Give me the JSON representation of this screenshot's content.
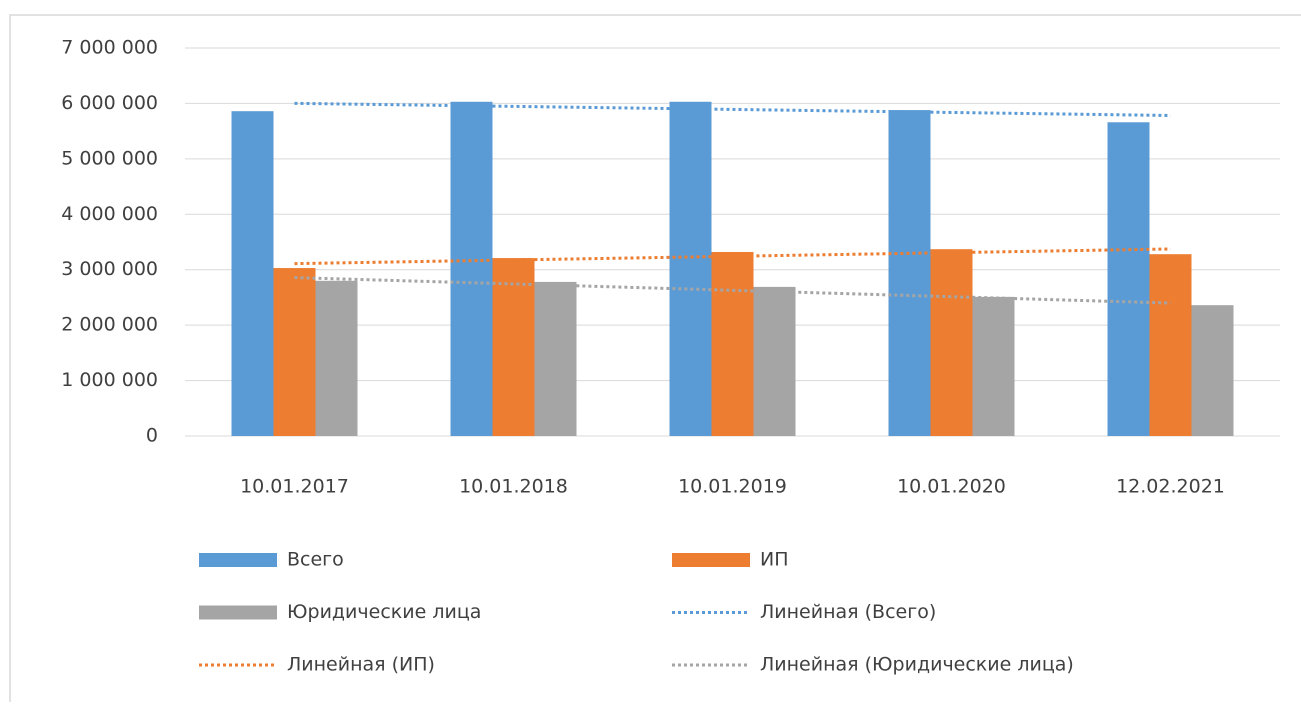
{
  "chart_data": {
    "type": "bar",
    "categories": [
      "10.01.2017",
      "10.01.2018",
      "10.01.2019",
      "10.01.2020",
      "12.02.2021"
    ],
    "series": [
      {
        "name": "Всего",
        "color": "#5b9bd5",
        "values": [
          5860000,
          6030000,
          6030000,
          5880000,
          5660000
        ]
      },
      {
        "name": "ИП",
        "color": "#ed7d31",
        "values": [
          3030000,
          3210000,
          3320000,
          3370000,
          3280000
        ]
      },
      {
        "name": "Юридические лица",
        "color": "#a5a5a5",
        "values": [
          2800000,
          2780000,
          2690000,
          2510000,
          2360000
        ]
      }
    ],
    "trendlines": [
      {
        "name": "Линейная (Всего)",
        "series": 0,
        "color": "#5b9bd5"
      },
      {
        "name": "Линейная (ИП)",
        "series": 1,
        "color": "#ed7d31"
      },
      {
        "name": "Линейная (Юридические лица)",
        "series": 2,
        "color": "#a5a5a5"
      }
    ],
    "ylim": [
      0,
      7000000
    ],
    "yticks": [
      0,
      {
        "value": 1000000,
        "label": "1 000 000"
      },
      {
        "value": 2000000,
        "label": "2 000 000"
      },
      {
        "value": 3000000,
        "label": "3 000 000"
      },
      {
        "value": 4000000,
        "label": "4 000 000"
      },
      {
        "value": 5000000,
        "label": "5 000 000"
      },
      {
        "value": 6000000,
        "label": "6 000 000"
      },
      {
        "value": 7000000,
        "label": "7 000 000"
      }
    ],
    "grid": true
  }
}
